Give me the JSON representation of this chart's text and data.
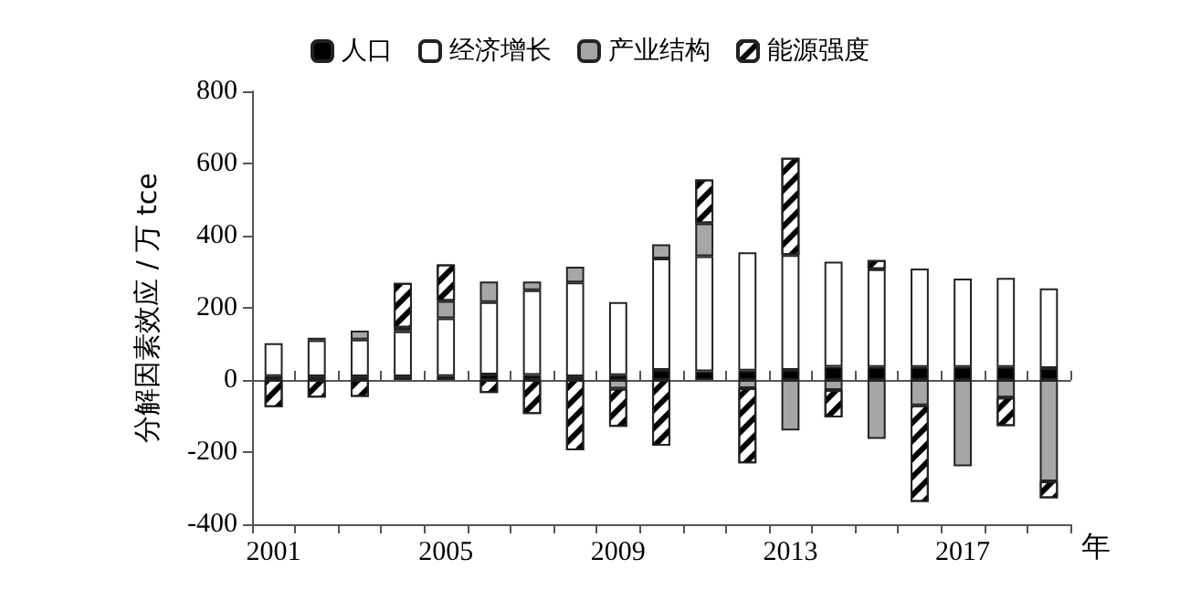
{
  "chart_data": {
    "type": "bar",
    "stacked": true,
    "ylabel": "分解因素效应 / 万 tce",
    "xlabel": "年",
    "categories": [
      "2001",
      null,
      null,
      null,
      "2005",
      null,
      null,
      null,
      "2009",
      null,
      null,
      null,
      "2013",
      null,
      null,
      null,
      "2017",
      null,
      null
    ],
    "series": [
      {
        "name": "人口",
        "color": "#000000",
        "values": [
          11,
          10,
          10,
          10,
          11,
          15,
          14,
          10,
          13,
          28,
          24,
          26,
          28,
          37,
          36,
          36,
          36,
          36,
          33
        ]
      },
      {
        "name": "经济增长",
        "color": "#ffffff",
        "values": [
          91,
          100,
          102,
          125,
          160,
          201,
          235,
          260,
          203,
          309,
          319,
          328,
          318,
          291,
          271,
          273,
          245,
          247,
          221
        ]
      },
      {
        "name": "产业结构",
        "color": "#a6a6a6",
        "values": [
          null,
          7,
          25,
          10,
          48,
          57,
          24,
          44,
          -24,
          39,
          91,
          -23,
          -140,
          -28,
          -163,
          -70,
          -239,
          -49,
          -281
        ]
      },
      {
        "name": "能源强度",
        "color": "#ffffff",
        "values": [
          -75,
          -49,
          -47,
          124,
          101,
          -36,
          -94,
          -195,
          -106,
          -182,
          122,
          -208,
          270,
          -76,
          25,
          -268,
          null,
          -79,
          -47
        ]
      }
    ],
    "ylim": [
      -400,
      800
    ],
    "yticks": [
      -400,
      -200,
      0,
      200,
      400,
      600,
      800
    ],
    "legend": "top"
  }
}
